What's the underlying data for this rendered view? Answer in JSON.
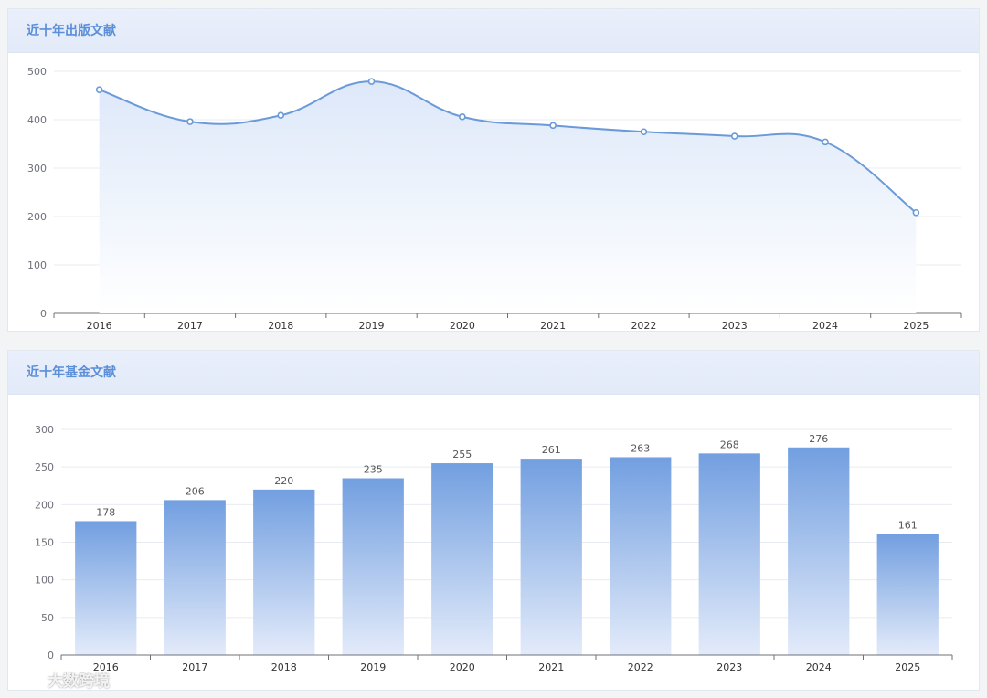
{
  "colors": {
    "line": "#6a9ad8",
    "area_top": "#dde8f9",
    "area_bottom": "#ffffff",
    "bar_top": "#729fe0",
    "bar_bottom": "#e3ebfa",
    "grid": "#e8ebf0",
    "axis": "#6e7079",
    "label": "#333333",
    "header_text": "#5b8fd8"
  },
  "panels": {
    "publications": {
      "title": "近十年出版文献"
    },
    "funds": {
      "title": "近十年基金文献"
    }
  },
  "watermark": {
    "text": "大数跨境"
  },
  "chart_data": [
    {
      "type": "area",
      "title": "近十年出版文献",
      "categories": [
        "2016",
        "2017",
        "2018",
        "2019",
        "2020",
        "2021",
        "2022",
        "2023",
        "2024",
        "2025"
      ],
      "values": [
        462,
        396,
        409,
        479,
        406,
        388,
        375,
        366,
        354,
        208
      ],
      "ylim": [
        0,
        500
      ],
      "yticks": [
        0,
        100,
        200,
        300,
        400,
        500
      ],
      "grid": true,
      "smooth": true
    },
    {
      "type": "bar",
      "title": "近十年基金文献",
      "categories": [
        "2016",
        "2017",
        "2018",
        "2019",
        "2020",
        "2021",
        "2022",
        "2023",
        "2024",
        "2025"
      ],
      "values": [
        178,
        206,
        220,
        235,
        255,
        261,
        263,
        268,
        276,
        161
      ],
      "ylim": [
        0,
        300
      ],
      "yticks": [
        0,
        50,
        100,
        150,
        200,
        250,
        300
      ],
      "grid": true,
      "data_labels": true
    }
  ]
}
